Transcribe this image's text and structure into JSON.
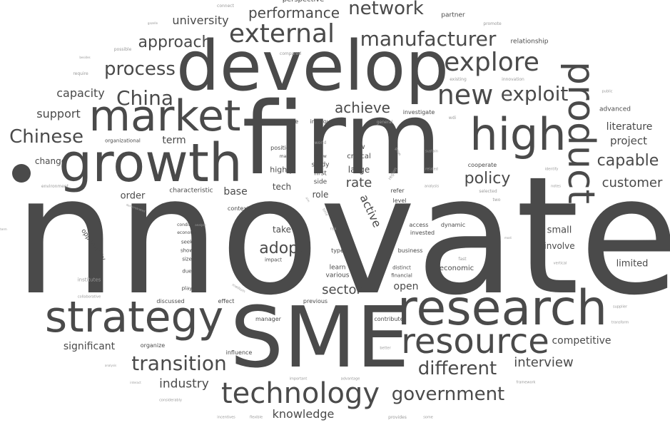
{
  "cloud": {
    "text_color": "#4a4a4a",
    "light_color": "#9a9a9a",
    "background": "#ffffff"
  },
  "words": [
    {
      "text": "innovate",
      "weight": 1.0
    },
    {
      "text": "firm",
      "weight": 0.9
    },
    {
      "text": "develop",
      "weight": 0.85
    },
    {
      "text": "SME",
      "weight": 0.8
    },
    {
      "text": "growth",
      "weight": 0.7
    },
    {
      "text": "research",
      "weight": 0.65
    },
    {
      "text": "market",
      "weight": 0.62
    },
    {
      "text": "strategy",
      "weight": 0.6
    },
    {
      "text": "high",
      "weight": 0.6
    },
    {
      "text": "product",
      "weight": 0.58
    },
    {
      "text": "resource",
      "weight": 0.56
    },
    {
      "text": "technology",
      "weight": 0.5
    },
    {
      "text": "external",
      "weight": 0.45
    },
    {
      "text": "explore",
      "weight": 0.44
    },
    {
      "text": "new",
      "weight": 0.44
    },
    {
      "text": "manufacturer",
      "weight": 0.4
    },
    {
      "text": "exploit",
      "weight": 0.38
    },
    {
      "text": "transition",
      "weight": 0.37
    },
    {
      "text": "different",
      "weight": 0.36
    },
    {
      "text": "government",
      "weight": 0.36
    },
    {
      "text": "network",
      "weight": 0.34
    },
    {
      "text": "China",
      "weight": 0.34
    },
    {
      "text": "Chinese",
      "weight": 0.33
    },
    {
      "text": "process",
      "weight": 0.33
    },
    {
      "text": "approach",
      "weight": 0.3
    },
    {
      "text": "performance",
      "weight": 0.28
    },
    {
      "text": "capable",
      "weight": 0.28
    },
    {
      "text": "policy",
      "weight": 0.28
    },
    {
      "text": "adopt",
      "weight": 0.27
    },
    {
      "text": "achieve",
      "weight": 0.26
    },
    {
      "text": "sector",
      "weight": 0.26
    },
    {
      "text": "interview",
      "weight": 0.25
    },
    {
      "text": "customer",
      "weight": 0.24
    },
    {
      "text": "rate",
      "weight": 0.24
    },
    {
      "text": "industry",
      "weight": 0.24
    },
    {
      "text": "knowledge",
      "weight": 0.23
    },
    {
      "text": "active",
      "weight": 0.23
    },
    {
      "text": "university",
      "weight": 0.22
    },
    {
      "text": "capacity",
      "weight": 0.22
    },
    {
      "text": "support",
      "weight": 0.22
    },
    {
      "text": "project",
      "weight": 0.22
    },
    {
      "text": "literature",
      "weight": 0.22
    },
    {
      "text": "competitive",
      "weight": 0.21
    },
    {
      "text": "significant",
      "weight": 0.21
    },
    {
      "text": "open",
      "weight": 0.21
    },
    {
      "text": "term",
      "weight": 0.2
    },
    {
      "text": "base",
      "weight": 0.2
    },
    {
      "text": "small",
      "weight": 0.2
    },
    {
      "text": "limited",
      "weight": 0.2
    },
    {
      "text": "involve",
      "weight": 0.2
    },
    {
      "text": "order",
      "weight": 0.2
    },
    {
      "text": "large",
      "weight": 0.19
    },
    {
      "text": "tech",
      "weight": 0.19
    },
    {
      "text": "take",
      "weight": 0.19
    },
    {
      "text": "role",
      "weight": 0.18
    },
    {
      "text": "change",
      "weight": 0.17
    },
    {
      "text": "highly",
      "weight": 0.17
    },
    {
      "text": "low",
      "weight": 0.16
    },
    {
      "text": "critical",
      "weight": 0.16
    },
    {
      "text": "first",
      "weight": 0.16
    },
    {
      "text": "side",
      "weight": 0.16
    },
    {
      "text": "study",
      "weight": 0.16
    },
    {
      "text": "learn",
      "weight": 0.16
    },
    {
      "text": "various",
      "weight": 0.16
    },
    {
      "text": "economic",
      "weight": 0.16
    },
    {
      "text": "characteristic",
      "weight": 0.16
    },
    {
      "text": "opportunity",
      "weight": 0.16
    },
    {
      "text": "advanced",
      "weight": 0.16
    },
    {
      "text": "cooperate",
      "weight": 0.15
    },
    {
      "text": "partner",
      "weight": 0.15
    },
    {
      "text": "relationship",
      "weight": 0.15
    },
    {
      "text": "structure",
      "weight": 0.15
    },
    {
      "text": "improve",
      "weight": 0.15
    },
    {
      "text": "investigate",
      "weight": 0.15
    },
    {
      "text": "organizational",
      "weight": 0.14
    },
    {
      "text": "manager",
      "weight": 0.14
    },
    {
      "text": "contribute",
      "weight": 0.14
    },
    {
      "text": "organize",
      "weight": 0.14
    },
    {
      "text": "influence",
      "weight": 0.14
    },
    {
      "text": "discussed",
      "weight": 0.14
    },
    {
      "text": "effect",
      "weight": 0.14
    },
    {
      "text": "previous",
      "weight": 0.14
    },
    {
      "text": "access",
      "weight": 0.14
    },
    {
      "text": "invested",
      "weight": 0.14
    },
    {
      "text": "dynamic",
      "weight": 0.14
    },
    {
      "text": "business",
      "weight": 0.14
    },
    {
      "text": "distinct",
      "weight": 0.14
    },
    {
      "text": "financial",
      "weight": 0.14
    },
    {
      "text": "type",
      "weight": 0.14
    },
    {
      "text": "position",
      "weight": 0.14
    },
    {
      "text": "level",
      "weight": 0.14
    },
    {
      "text": "refer",
      "weight": 0.14
    },
    {
      "text": "context",
      "weight": 0.13
    },
    {
      "text": "seek",
      "weight": 0.13
    },
    {
      "text": "show",
      "weight": 0.13
    },
    {
      "text": "size",
      "weight": 0.13
    },
    {
      "text": "due",
      "weight": 0.13
    },
    {
      "text": "play",
      "weight": 0.13
    },
    {
      "text": "condition",
      "weight": 0.12
    },
    {
      "text": "economy",
      "weight": 0.12
    },
    {
      "text": "impact",
      "weight": 0.12
    },
    {
      "text": "make",
      "weight": 0.12
    },
    {
      "text": "follow",
      "weight": 0.12
    },
    {
      "text": "general",
      "weight": 0.11
    },
    {
      "text": "world",
      "weight": 0.11
    },
    {
      "text": "fast",
      "weight": 0.11
    },
    {
      "text": "two",
      "weight": 0.11
    },
    {
      "text": "selected",
      "weight": 0.11
    },
    {
      "text": "perspective",
      "weight": 0.13
    },
    {
      "text": "connect",
      "weight": 0.1
    },
    {
      "text": "compared",
      "weight": 0.1
    },
    {
      "text": "promote",
      "weight": 0.1
    },
    {
      "text": "existing",
      "weight": 0.1
    },
    {
      "text": "innovation",
      "weight": 0.1
    },
    {
      "text": "wdi",
      "weight": 0.1
    },
    {
      "text": "public",
      "weight": 0.1
    },
    {
      "text": "sustain",
      "weight": 0.1
    },
    {
      "text": "related",
      "weight": 0.1
    },
    {
      "text": "identify",
      "weight": 0.1
    },
    {
      "text": "notes",
      "weight": 0.1
    },
    {
      "text": "analysis",
      "weight": 0.1
    },
    {
      "text": "vertical",
      "weight": 0.1
    },
    {
      "text": "supplier",
      "weight": 0.1
    },
    {
      "text": "transform",
      "weight": 0.1
    },
    {
      "text": "framework",
      "weight": 0.1
    },
    {
      "text": "better",
      "weight": 0.1
    },
    {
      "text": "important",
      "weight": 0.1
    },
    {
      "text": "advantage",
      "weight": 0.1
    },
    {
      "text": "provides",
      "weight": 0.1
    },
    {
      "text": "some",
      "weight": 0.1
    },
    {
      "text": "flexible",
      "weight": 0.1
    },
    {
      "text": "incentives",
      "weight": 0.1
    },
    {
      "text": "considerably",
      "weight": 0.1
    },
    {
      "text": "interact",
      "weight": 0.1
    },
    {
      "text": "analysis",
      "weight": 0.1
    },
    {
      "text": "collaborative",
      "weight": 0.1
    },
    {
      "text": "institutes",
      "weight": 0.1
    },
    {
      "text": "environment",
      "weight": 0.1
    },
    {
      "text": "require",
      "weight": 0.1
    },
    {
      "text": "besides",
      "weight": 0.1
    },
    {
      "text": "possible",
      "weight": 0.1
    },
    {
      "text": "gazelle",
      "weight": 0.1
    },
    {
      "text": "analyze",
      "weight": 0.1
    },
    {
      "text": "risk",
      "weight": 0.1
    },
    {
      "text": "demonstrated",
      "weight": 0.1
    },
    {
      "text": "region",
      "weight": 0.1
    },
    {
      "text": "grow",
      "weight": 0.1
    },
    {
      "text": "time",
      "weight": 0.1
    },
    {
      "text": "medium",
      "weight": 0.1
    },
    {
      "text": "aim",
      "weight": 0.1
    },
    {
      "text": "term",
      "weight": 0.1
    },
    {
      "text": "most",
      "weight": 0.1
    }
  ]
}
